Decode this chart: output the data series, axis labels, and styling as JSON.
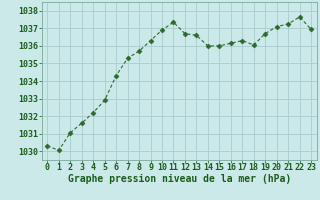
{
  "x": [
    0,
    1,
    2,
    3,
    4,
    5,
    6,
    7,
    8,
    9,
    10,
    11,
    12,
    13,
    14,
    15,
    16,
    17,
    18,
    19,
    20,
    21,
    22,
    23
  ],
  "y": [
    1030.3,
    1030.05,
    1031.05,
    1031.6,
    1032.2,
    1032.9,
    1034.3,
    1035.3,
    1035.7,
    1036.3,
    1036.9,
    1037.35,
    1036.7,
    1036.6,
    1036.0,
    1036.0,
    1036.15,
    1036.3,
    1036.05,
    1036.7,
    1037.1,
    1037.25,
    1037.65,
    1036.95
  ],
  "line_color": "#2d6a2d",
  "marker": "D",
  "marker_size": 2.5,
  "bg_color": "#cce9e9",
  "grid_color": "#aacccc",
  "xlabel": "Graphe pression niveau de la mer (hPa)",
  "xlabel_color": "#1a5c1a",
  "xlabel_fontsize": 7.0,
  "tick_color": "#1a5c1a",
  "tick_fontsize": 6.0,
  "ylim_min": 1029.5,
  "ylim_max": 1038.5,
  "yticks": [
    1030,
    1031,
    1032,
    1033,
    1034,
    1035,
    1036,
    1037,
    1038
  ]
}
